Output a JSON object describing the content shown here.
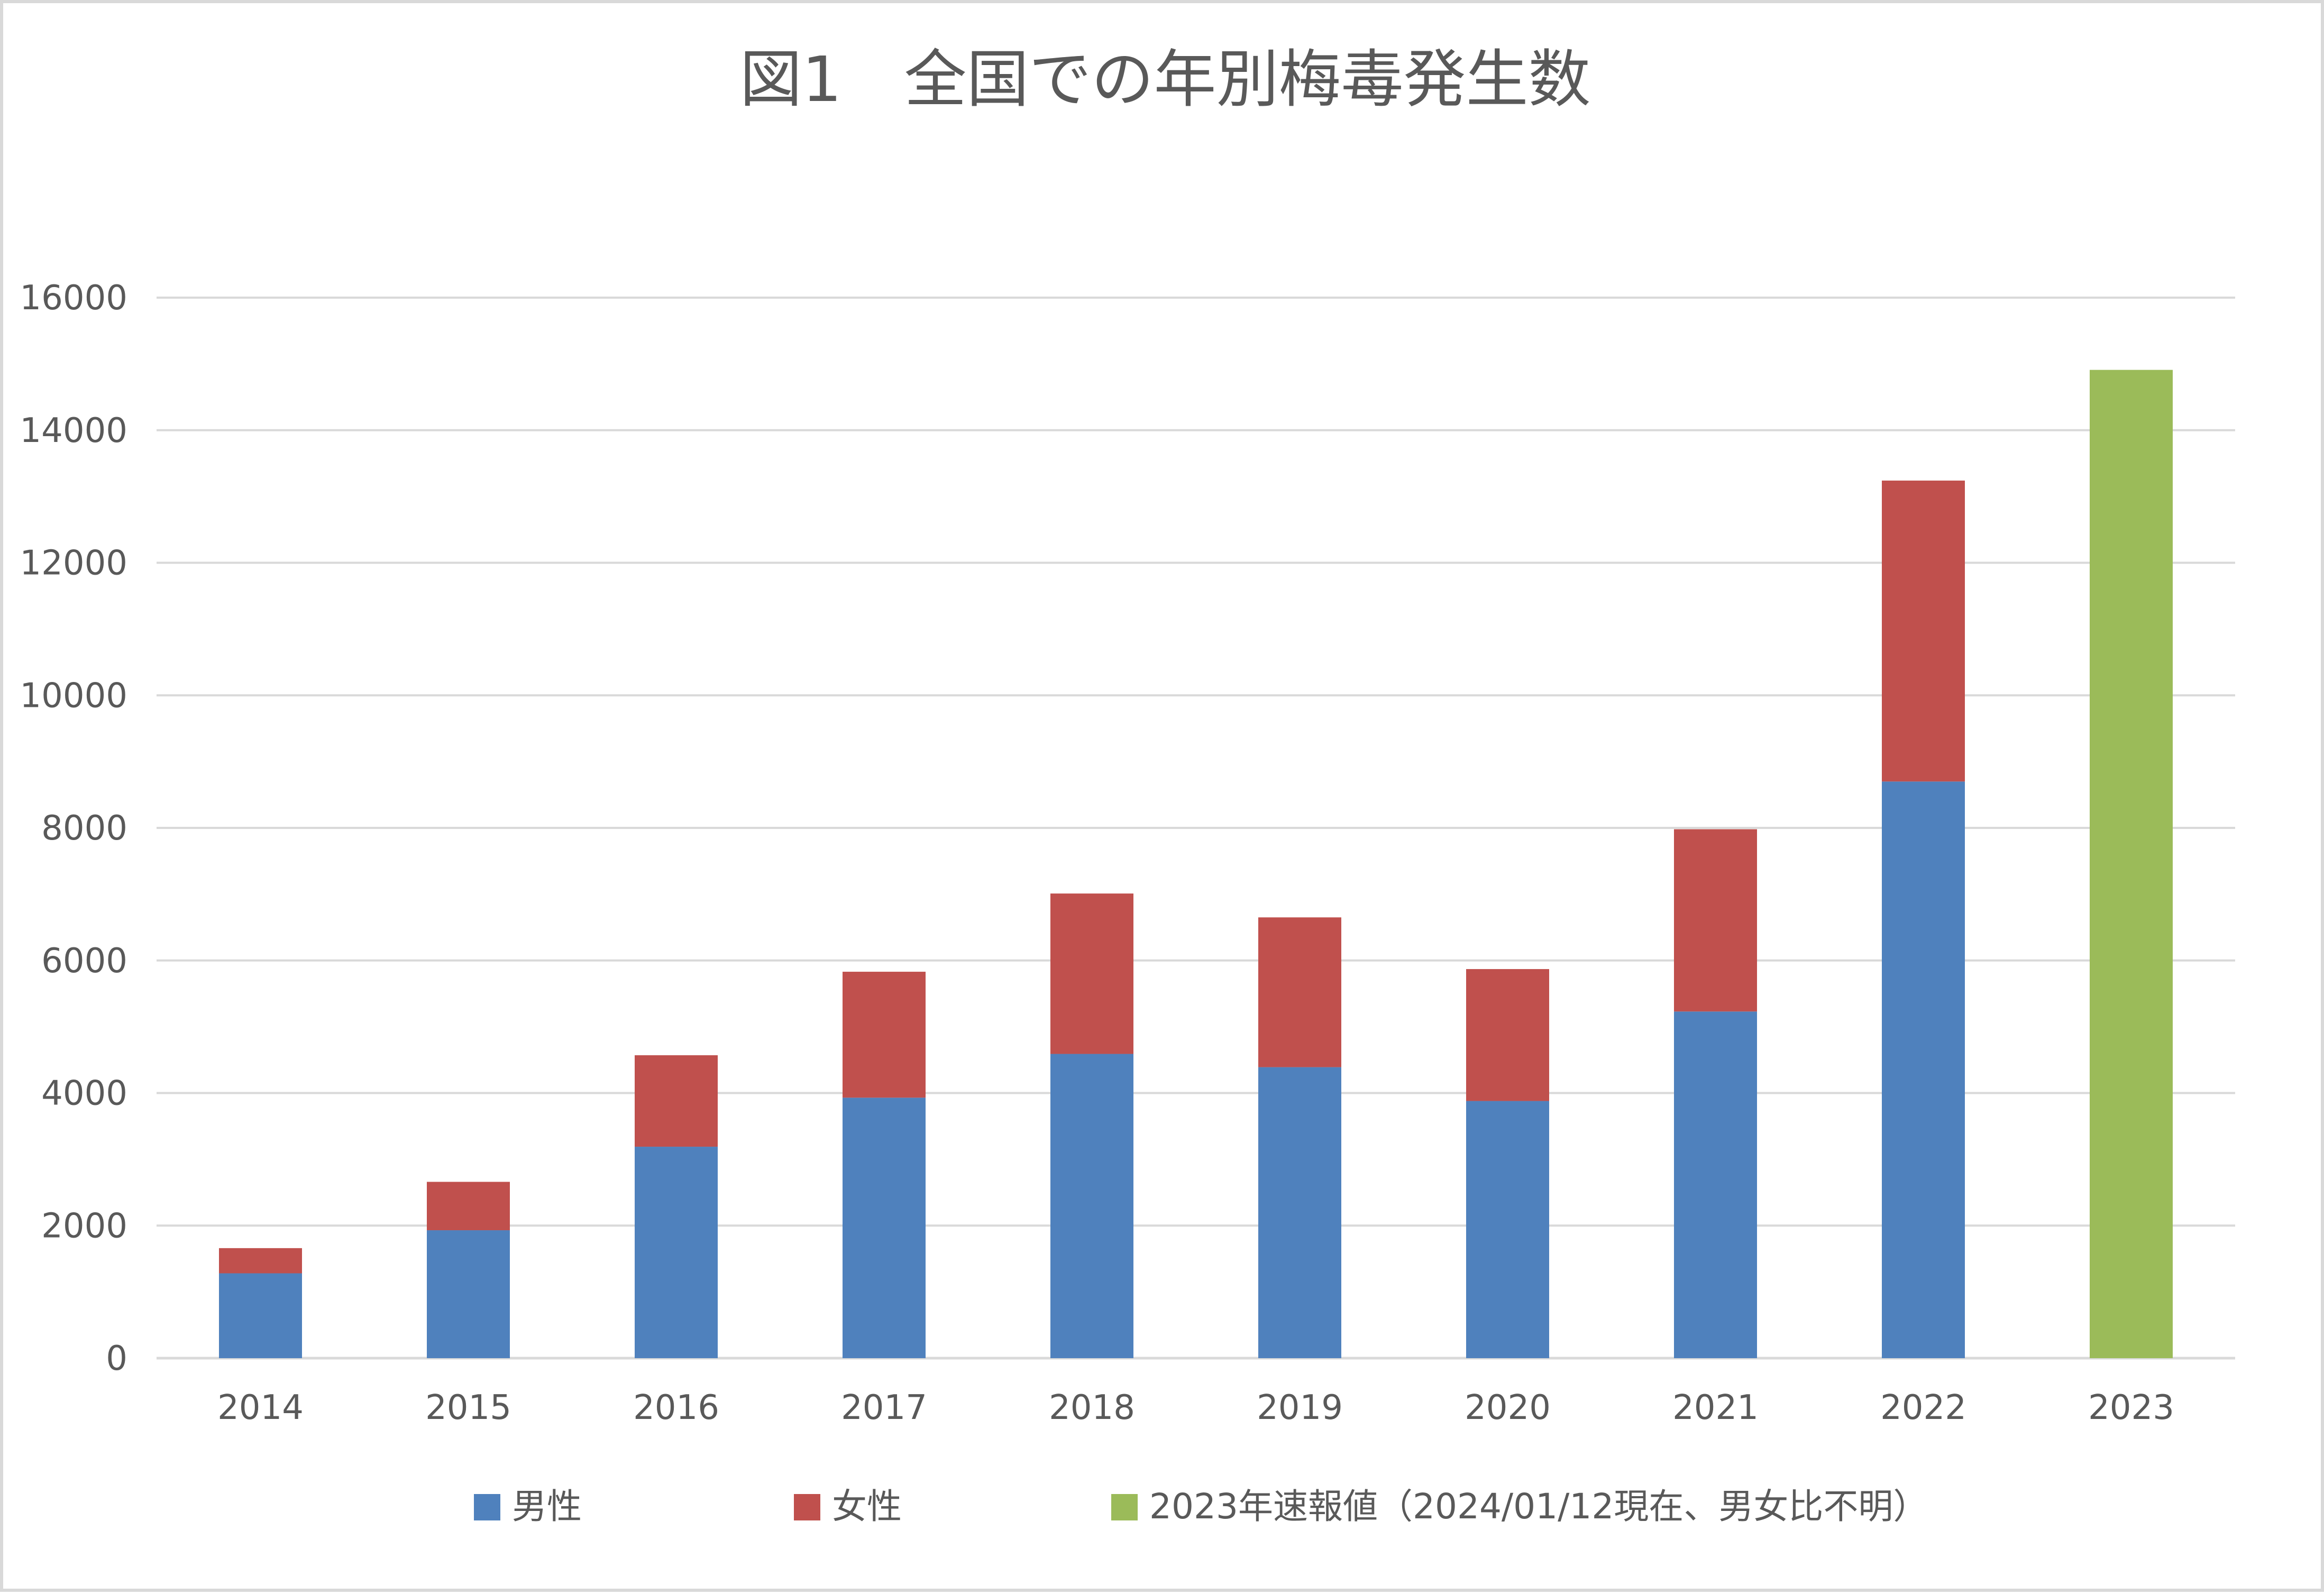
{
  "chart_data": {
    "type": "bar",
    "stacked": true,
    "title": "図1　全国での年別梅毒発生数",
    "xlabel": "",
    "ylabel": "",
    "categories": [
      "2014",
      "2015",
      "2016",
      "2017",
      "2018",
      "2019",
      "2020",
      "2021",
      "2022",
      "2023"
    ],
    "ylim": [
      0,
      16000
    ],
    "yticks": [
      0,
      2000,
      4000,
      6000,
      8000,
      10000,
      12000,
      14000,
      16000
    ],
    "grid": true,
    "legend_position": "bottom",
    "series": [
      {
        "name": "男性",
        "color": "#4f81bd",
        "values": [
          1280,
          1930,
          3190,
          3930,
          4590,
          4390,
          3880,
          5230,
          8700,
          0
        ]
      },
      {
        "name": "女性",
        "color": "#c0504d",
        "values": [
          380,
          730,
          1380,
          1900,
          2420,
          2260,
          1990,
          2750,
          4540,
          0
        ]
      },
      {
        "name": "2023年速報値（2024/01/12現在、男女比不明）",
        "color": "#9bbb59",
        "values": [
          0,
          0,
          0,
          0,
          0,
          0,
          0,
          0,
          0,
          14910
        ]
      }
    ],
    "colors": {
      "grid": "#d9d9d9",
      "text": "#595959",
      "border": "#d9d9d9",
      "background": "#ffffff"
    }
  }
}
